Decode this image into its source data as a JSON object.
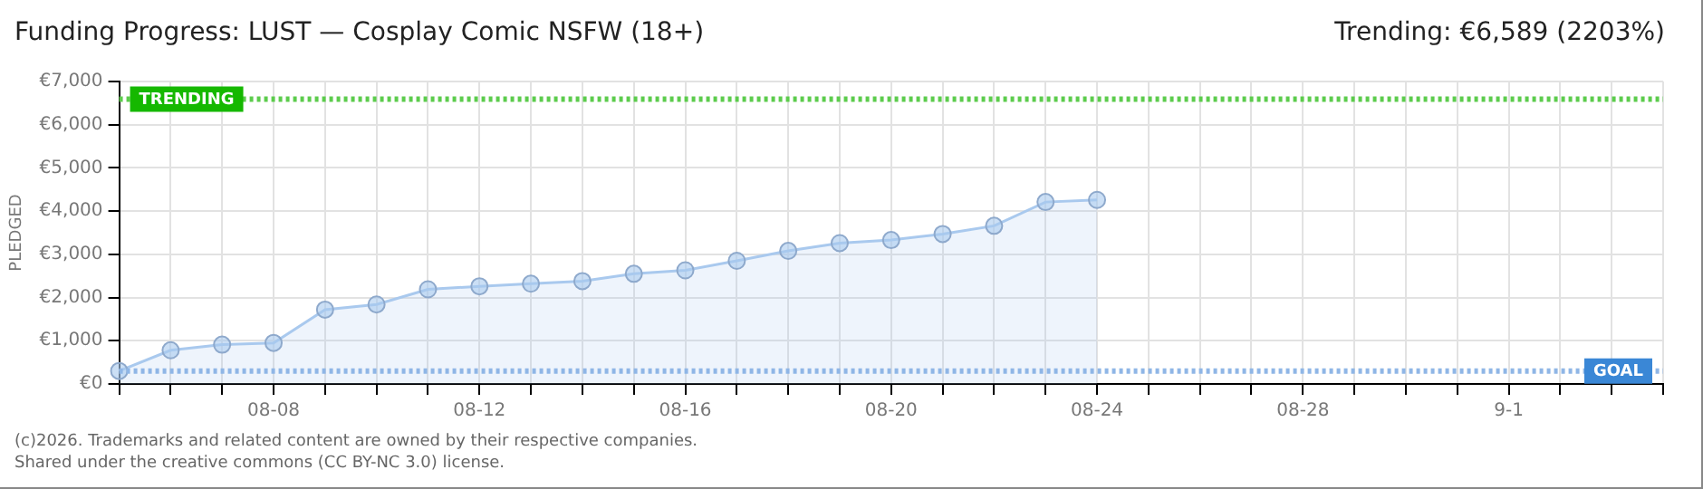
{
  "chart_data": {
    "type": "area",
    "title": "Funding Progress: LUST — Cosplay Comic NSFW (18+)",
    "subtitle": "Trending: €6,589 (2203%)",
    "ylabel": "PLEDGED",
    "categories": [
      null,
      null,
      null,
      "08-08",
      null,
      null,
      null,
      "08-12",
      null,
      null,
      null,
      "08-16",
      null,
      null,
      null,
      "08-20",
      null,
      null,
      null,
      "08-24",
      null,
      null,
      null,
      "08-28",
      null,
      null,
      null,
      "9-1",
      null,
      null,
      null
    ],
    "series": [
      {
        "color": "#a9c9ee",
        "values": [
          300,
          780,
          910,
          950,
          1720,
          1840,
          2190,
          2260,
          2320,
          2380,
          2550,
          2630,
          2850,
          3080,
          3260,
          3330,
          3470,
          3660,
          4210,
          4260,
          null,
          null,
          null,
          null,
          null,
          null,
          null,
          null,
          null,
          null,
          null
        ]
      }
    ],
    "ylim": [
      0,
      7000
    ],
    "yticks": [
      {
        "value": 0,
        "label": "€0"
      },
      {
        "value": 1000,
        "label": "€1,000"
      },
      {
        "value": 2000,
        "label": "€2,000"
      },
      {
        "value": 3000,
        "label": "€3,000"
      },
      {
        "value": 4000,
        "label": "€4,000"
      },
      {
        "value": 5000,
        "label": "€5,000"
      },
      {
        "value": 6000,
        "label": "€6,000"
      },
      {
        "value": 7000,
        "label": "€7,000"
      }
    ],
    "ref_lines": [
      {
        "axis": "y",
        "value": 6589,
        "label": "TRENDING",
        "color": "#5ccc4c",
        "line_style": "dotted"
      },
      {
        "axis": "y",
        "value": 299,
        "label": "GOAL",
        "color": "#8fb6e6",
        "line_style": "dotted"
      }
    ],
    "grid": true,
    "legend": false,
    "marker": "circle",
    "line_style": "solid",
    "annotations": [
      "(c)2026. Trademarks and related content are owned by their respective companies.",
      "Shared under the creative commons (CC BY-NC 3.0) license."
    ]
  }
}
